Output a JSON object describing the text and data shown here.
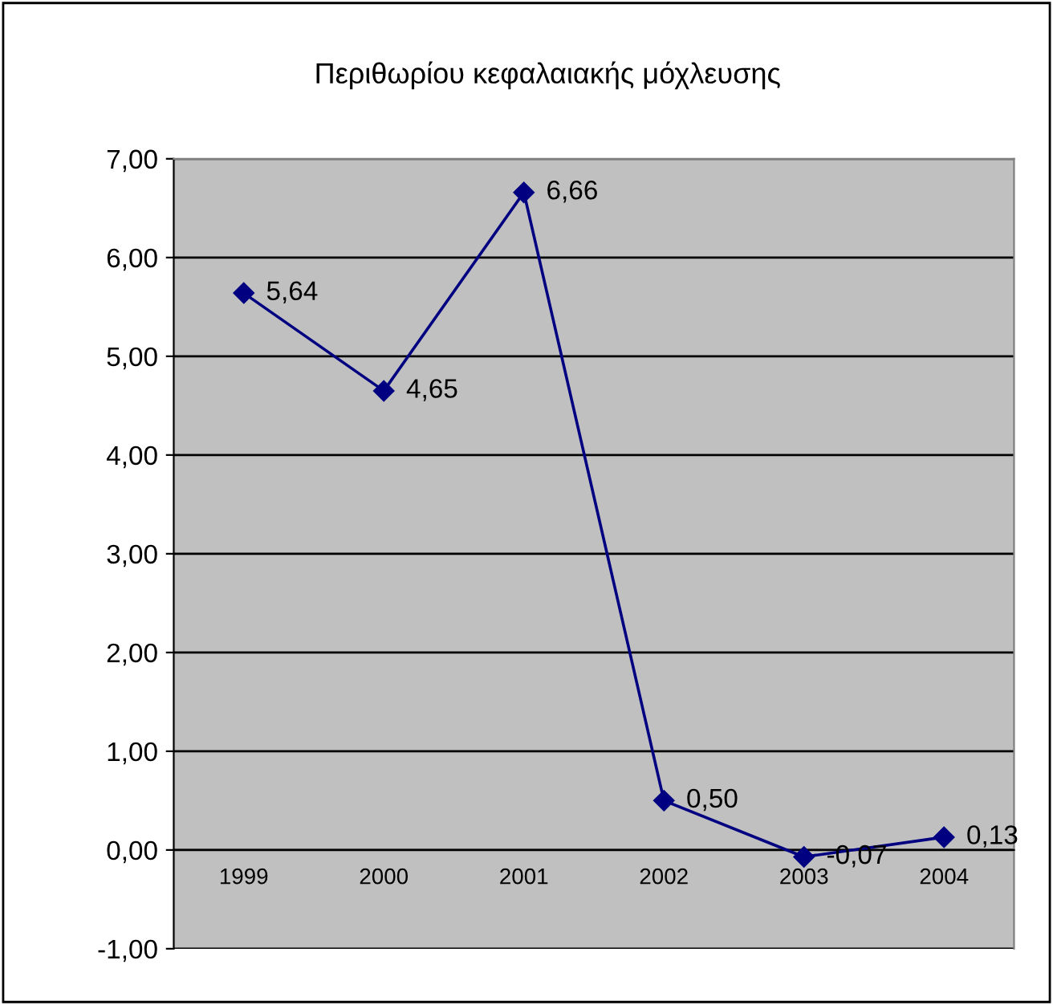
{
  "chart_data": {
    "type": "line",
    "title": "Περιθωρίου κεφαλαιακής μόχλευσης",
    "categories": [
      "1999",
      "2000",
      "2001",
      "2002",
      "2003",
      "2004"
    ],
    "series": [
      {
        "color": "#000080",
        "values": [
          5.64,
          4.65,
          6.66,
          0.5,
          -0.07,
          0.13
        ],
        "value_labels": [
          "5,64",
          "4,65",
          "6,66",
          "0,50",
          "-0,07",
          "0,13"
        ]
      }
    ],
    "ylim": [
      -1,
      7
    ],
    "yticks": [
      {
        "value": -1,
        "label": "-1,00"
      },
      {
        "value": 0,
        "label": "0,00"
      },
      {
        "value": 1,
        "label": "1,00"
      },
      {
        "value": 2,
        "label": "2,00"
      },
      {
        "value": 3,
        "label": "3,00"
      },
      {
        "value": 4,
        "label": "4,00"
      },
      {
        "value": 5,
        "label": "5,00"
      },
      {
        "value": 6,
        "label": "6,00"
      },
      {
        "value": 7,
        "label": "7,00"
      }
    ],
    "grid": "y",
    "marker": "diamond",
    "line_style": "solid",
    "legend": false
  }
}
